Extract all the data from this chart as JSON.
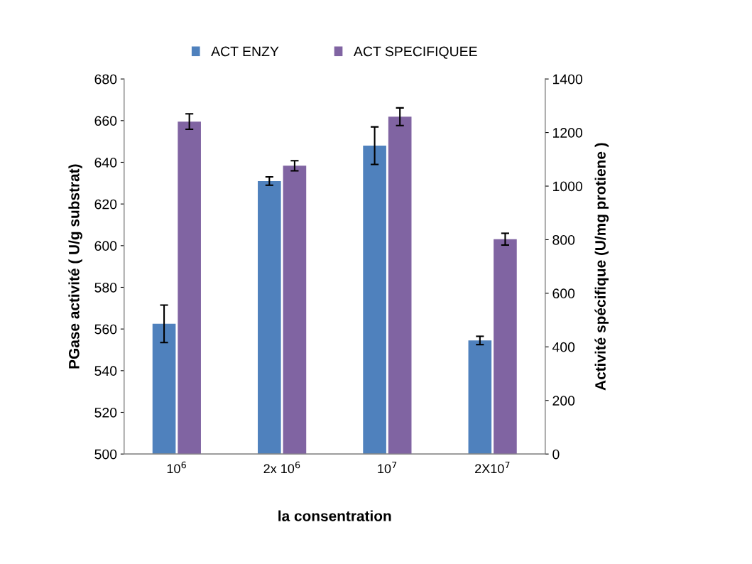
{
  "chart_data": {
    "type": "bar",
    "xlabel": "la consentration",
    "ylabel": "PGase activité ( U/g substrat)",
    "y2label": "Activité spécifique (U/mg protiene )",
    "categories": [
      "10$^{6}$",
      "2x 10$^{6}$",
      "10$^{7}$",
      "2X10$^{7}$"
    ],
    "series": [
      {
        "name": "ACT ENZY",
        "color": "#4f81bd",
        "values": [
          562.5,
          631,
          648,
          554.5
        ],
        "errors": [
          9,
          2,
          9,
          2
        ]
      },
      {
        "name": "ACT SPECIFIQUEE",
        "color": "#8064a2",
        "axis": "y2",
        "values": [
          1241,
          1076,
          1259,
          802
        ],
        "errors": [
          29,
          19,
          33,
          22
        ]
      }
    ],
    "ylim": [
      500,
      680
    ],
    "yticks": [
      500,
      520,
      540,
      560,
      580,
      600,
      620,
      640,
      660,
      680
    ],
    "y2lim": [
      0,
      1400
    ],
    "y2ticks": [
      0,
      200,
      400,
      600,
      800,
      1000,
      1200,
      1400
    ],
    "legend": "top",
    "grid": false
  }
}
